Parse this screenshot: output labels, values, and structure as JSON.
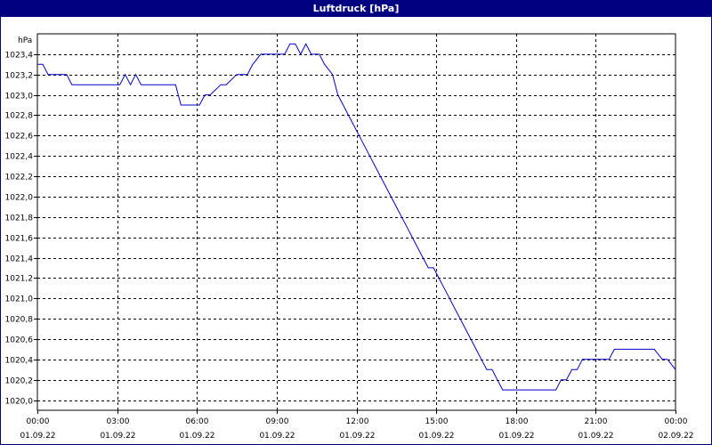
{
  "window": {
    "title": "Luftdruck [hPa]"
  },
  "colors": {
    "titlebar": "#000080",
    "line": "#0000cc",
    "grid": "#000000"
  },
  "chart_data": {
    "type": "line",
    "title": "Luftdruck [hPa]",
    "ylabel": "hPa",
    "xlabel": "",
    "ylim": [
      1019.9,
      1023.6
    ],
    "xlim": [
      "00:00",
      "24:00"
    ],
    "grid": true,
    "y_ticks": [
      "1020,0",
      "1020,2",
      "1020,4",
      "1020,6",
      "1020,8",
      "1021,0",
      "1021,2",
      "1021,4",
      "1021,6",
      "1021,8",
      "1022,0",
      "1022,2",
      "1022,4",
      "1022,6",
      "1022,8",
      "1023,0",
      "1023,2",
      "1023,4"
    ],
    "y_tick_values": [
      1020.0,
      1020.2,
      1020.4,
      1020.6,
      1020.8,
      1021.0,
      1021.2,
      1021.4,
      1021.6,
      1021.8,
      1022.0,
      1022.2,
      1022.4,
      1022.6,
      1022.8,
      1023.0,
      1023.2,
      1023.4
    ],
    "x_ticks": [
      {
        "time": "00:00",
        "date": "01.09.22",
        "hours": 0
      },
      {
        "time": "03:00",
        "date": "01.09.22",
        "hours": 3
      },
      {
        "time": "06:00",
        "date": "01.09.22",
        "hours": 6
      },
      {
        "time": "09:00",
        "date": "01.09.22",
        "hours": 9
      },
      {
        "time": "12:00",
        "date": "01.09.22",
        "hours": 12
      },
      {
        "time": "15:00",
        "date": "01.09.22",
        "hours": 15
      },
      {
        "time": "18:00",
        "date": "01.09.22",
        "hours": 18
      },
      {
        "time": "21:00",
        "date": "01.09.22",
        "hours": 21
      },
      {
        "time": "00:00",
        "date": "02.09.22",
        "hours": 24
      }
    ],
    "series": [
      {
        "x": [
          0.0,
          0.2,
          0.4,
          1.1,
          1.3,
          3.1,
          3.3,
          3.5,
          3.7,
          3.9,
          4.1,
          4.3,
          5.2,
          5.4,
          5.9,
          6.1,
          6.3,
          6.5,
          6.9,
          7.1,
          7.5,
          7.7,
          7.9,
          8.1,
          8.4,
          9.3,
          9.5,
          9.7,
          9.9,
          10.1,
          10.3,
          10.6,
          10.8,
          11.1,
          11.3,
          11.5,
          11.7,
          11.9,
          12.1,
          12.3,
          12.5,
          12.7,
          12.9,
          13.1,
          13.3,
          13.5,
          13.7,
          13.9,
          14.1,
          14.3,
          14.5,
          14.7,
          14.9,
          15.1,
          15.3,
          15.5,
          15.7,
          15.9,
          16.1,
          16.3,
          16.5,
          16.7,
          16.9,
          17.1,
          17.3,
          17.5,
          17.7,
          17.9,
          18.1,
          18.3,
          19.0,
          19.5,
          19.7,
          19.9,
          20.1,
          20.3,
          20.5,
          20.7,
          21.0,
          21.5,
          21.7,
          22.2,
          23.0,
          23.2,
          23.5,
          23.7,
          24.0
        ],
        "y": [
          1023.3,
          1023.3,
          1023.2,
          1023.2,
          1023.1,
          1023.1,
          1023.2,
          1023.1,
          1023.2,
          1023.1,
          1023.1,
          1023.1,
          1023.1,
          1022.9,
          1022.9,
          1022.9,
          1023.0,
          1023.0,
          1023.1,
          1023.1,
          1023.2,
          1023.2,
          1023.2,
          1023.3,
          1023.4,
          1023.4,
          1023.5,
          1023.5,
          1023.4,
          1023.5,
          1023.4,
          1023.4,
          1023.3,
          1023.2,
          1023.0,
          1022.9,
          1022.8,
          1022.7,
          1022.6,
          1022.5,
          1022.4,
          1022.3,
          1022.2,
          1022.1,
          1022.0,
          1021.9,
          1021.8,
          1021.7,
          1021.6,
          1021.5,
          1021.4,
          1021.3,
          1021.3,
          1021.2,
          1021.1,
          1021.0,
          1020.9,
          1020.8,
          1020.7,
          1020.6,
          1020.5,
          1020.4,
          1020.3,
          1020.3,
          1020.2,
          1020.1,
          1020.1,
          1020.1,
          1020.1,
          1020.1,
          1020.1,
          1020.1,
          1020.2,
          1020.2,
          1020.3,
          1020.3,
          1020.4,
          1020.4,
          1020.4,
          1020.4,
          1020.5,
          1020.5,
          1020.5,
          1020.5,
          1020.4,
          1020.4,
          1020.3
        ]
      }
    ]
  }
}
